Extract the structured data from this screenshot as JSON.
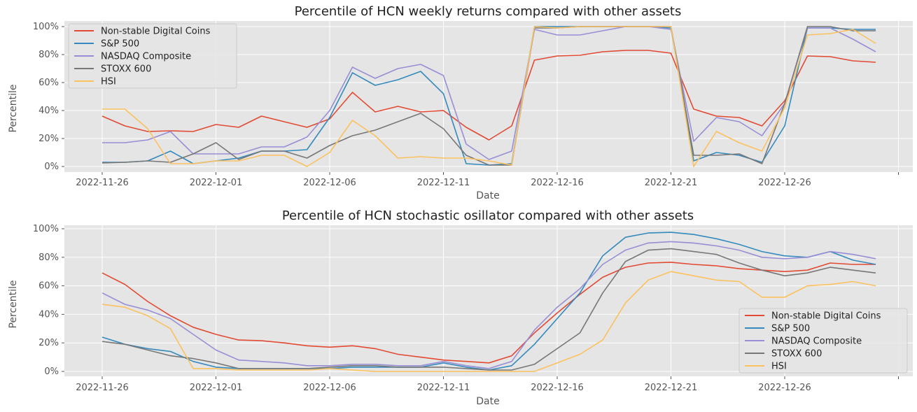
{
  "colors": {
    "Non-stable Digital Coins": "#E24A33",
    "S&P 500": "#348ABD",
    "NASDAQ Composite": "#988ED5",
    "STOXX 600": "#777777",
    "HSI": "#FBC15E"
  },
  "chart_data": [
    {
      "type": "line",
      "title": "Percentile of HCN weekly returns compared with other assets",
      "xlabel": "Date",
      "ylabel": "Percentile",
      "xtick_labels": [
        "2022-11-26",
        "2022-12-01",
        "2022-12-06",
        "2022-12-11",
        "2022-12-16",
        "2022-12-21",
        "2022-12-26",
        ""
      ],
      "ytick_labels": [
        "0%",
        "20%",
        "40%",
        "60%",
        "80%",
        "100%"
      ],
      "ylim": [
        0,
        100
      ],
      "grid": true,
      "legend": "top-left",
      "x": [
        "2022-11-26",
        "2022-11-27",
        "2022-11-28",
        "2022-11-29",
        "2022-11-30",
        "2022-12-01",
        "2022-12-02",
        "2022-12-03",
        "2022-12-04",
        "2022-12-05",
        "2022-12-06",
        "2022-12-07",
        "2022-12-08",
        "2022-12-09",
        "2022-12-10",
        "2022-12-11",
        "2022-12-12",
        "2022-12-13",
        "2022-12-14",
        "2022-12-15",
        "2022-12-16",
        "2022-12-17",
        "2022-12-18",
        "2022-12-19",
        "2022-12-20",
        "2022-12-21",
        "2022-12-22",
        "2022-12-23",
        "2022-12-24",
        "2022-12-25",
        "2022-12-26",
        "2022-12-27",
        "2022-12-28",
        "2022-12-29",
        "2022-12-30"
      ],
      "series": [
        {
          "name": "Non-stable Digital Coins",
          "values": [
            36,
            29,
            25,
            25.5,
            25,
            30,
            28,
            36,
            32,
            28,
            34,
            53,
            39,
            43,
            39,
            40,
            28,
            19,
            29,
            76,
            79,
            79.5,
            82,
            83,
            83,
            81,
            41,
            36,
            35,
            29,
            47,
            79,
            78.5,
            75.5,
            74.5
          ]
        },
        {
          "name": "S&P 500",
          "values": [
            3,
            3,
            4,
            11,
            2,
            4,
            6,
            11,
            11,
            12,
            35,
            67,
            58,
            62,
            68,
            52,
            2,
            1,
            2,
            100,
            100,
            100,
            100,
            100,
            100,
            99,
            4,
            10,
            8,
            3,
            29,
            99,
            99,
            98,
            98
          ]
        },
        {
          "name": "NASDAQ Composite",
          "values": [
            17,
            17,
            19,
            25,
            9,
            9,
            9,
            14,
            14,
            21,
            40,
            71,
            63,
            70,
            73,
            65,
            16,
            5,
            11,
            98,
            94,
            94,
            97,
            100,
            100,
            98,
            18,
            35,
            32,
            22,
            45,
            99,
            99,
            91,
            82
          ]
        },
        {
          "name": "STOXX 600",
          "values": [
            2.5,
            3,
            4,
            3,
            9,
            17,
            5,
            11,
            11,
            6,
            15,
            22,
            26,
            32,
            38,
            27,
            8,
            1,
            1,
            99,
            99,
            100,
            100,
            100,
            100,
            100,
            8,
            8,
            9,
            2,
            45,
            100,
            100,
            97,
            97
          ]
        },
        {
          "name": "HSI",
          "values": [
            41,
            41,
            27,
            2,
            2,
            4,
            4,
            8,
            8,
            0,
            10,
            33,
            22,
            6,
            7,
            6,
            6,
            4,
            1,
            100,
            99,
            100,
            100,
            100,
            100,
            100,
            0,
            25,
            17,
            11,
            42,
            94,
            95,
            98,
            88
          ]
        }
      ]
    },
    {
      "type": "line",
      "title": "Percentile of HCN stochastic osillator compared with other assets",
      "xlabel": "Date",
      "ylabel": "Percentile",
      "xtick_labels": [
        "2022-11-26",
        "2022-12-01",
        "2022-12-06",
        "2022-12-11",
        "2022-12-16",
        "2022-12-21",
        "2022-12-26",
        ""
      ],
      "ytick_labels": [
        "0%",
        "20%",
        "40%",
        "60%",
        "80%",
        "100%"
      ],
      "ylim": [
        0,
        100
      ],
      "grid": true,
      "legend": "bottom-right",
      "x": [
        "2022-11-26",
        "2022-11-27",
        "2022-11-28",
        "2022-11-29",
        "2022-11-30",
        "2022-12-01",
        "2022-12-02",
        "2022-12-03",
        "2022-12-04",
        "2022-12-05",
        "2022-12-06",
        "2022-12-07",
        "2022-12-08",
        "2022-12-09",
        "2022-12-10",
        "2022-12-11",
        "2022-12-12",
        "2022-12-13",
        "2022-12-14",
        "2022-12-15",
        "2022-12-16",
        "2022-12-17",
        "2022-12-18",
        "2022-12-19",
        "2022-12-20",
        "2022-12-21",
        "2022-12-22",
        "2022-12-23",
        "2022-12-24",
        "2022-12-25",
        "2022-12-26",
        "2022-12-27",
        "2022-12-28",
        "2022-12-29",
        "2022-12-30"
      ],
      "series": [
        {
          "name": "Non-stable Digital Coins",
          "values": [
            69,
            61,
            49,
            39,
            31,
            26,
            22,
            21.5,
            20,
            18,
            17,
            18,
            16,
            12,
            10,
            8,
            7,
            6,
            11,
            27,
            41,
            54,
            66,
            73,
            76,
            76.5,
            75,
            74,
            72,
            71,
            70,
            71,
            76,
            75,
            75
          ]
        },
        {
          "name": "S&P 500",
          "values": [
            24,
            19,
            16,
            14,
            7,
            3,
            2,
            2,
            2,
            2,
            2,
            3,
            3,
            3,
            3,
            6,
            3,
            1,
            4,
            19,
            37,
            55,
            81,
            94,
            97,
            97.5,
            96,
            93,
            89,
            84,
            81,
            80,
            84,
            78,
            75
          ]
        },
        {
          "name": "NASDAQ Composite",
          "values": [
            55,
            47,
            43,
            37,
            26,
            15,
            8,
            7,
            6,
            4,
            4,
            5,
            5,
            4,
            4,
            7,
            4,
            2,
            7,
            29,
            45,
            58,
            75,
            85,
            90,
            91,
            90,
            88,
            85,
            80,
            79,
            80,
            84,
            82,
            79
          ]
        },
        {
          "name": "STOXX 600",
          "values": [
            21,
            19,
            15,
            11,
            9,
            6,
            2,
            2,
            2,
            2,
            3,
            4,
            4,
            3,
            3,
            3,
            2,
            1,
            1,
            5,
            16,
            27,
            55,
            77,
            85,
            86,
            84,
            82,
            76,
            71,
            67,
            69,
            73,
            71,
            69
          ]
        },
        {
          "name": "HSI",
          "values": [
            47,
            45,
            39,
            30,
            2,
            2,
            1,
            1,
            1,
            1,
            2,
            1,
            0,
            0,
            0,
            0,
            0,
            0,
            0,
            0,
            6,
            12,
            22,
            48,
            64,
            70,
            67,
            64,
            63,
            52,
            52,
            60,
            61,
            63,
            60
          ]
        }
      ]
    }
  ]
}
